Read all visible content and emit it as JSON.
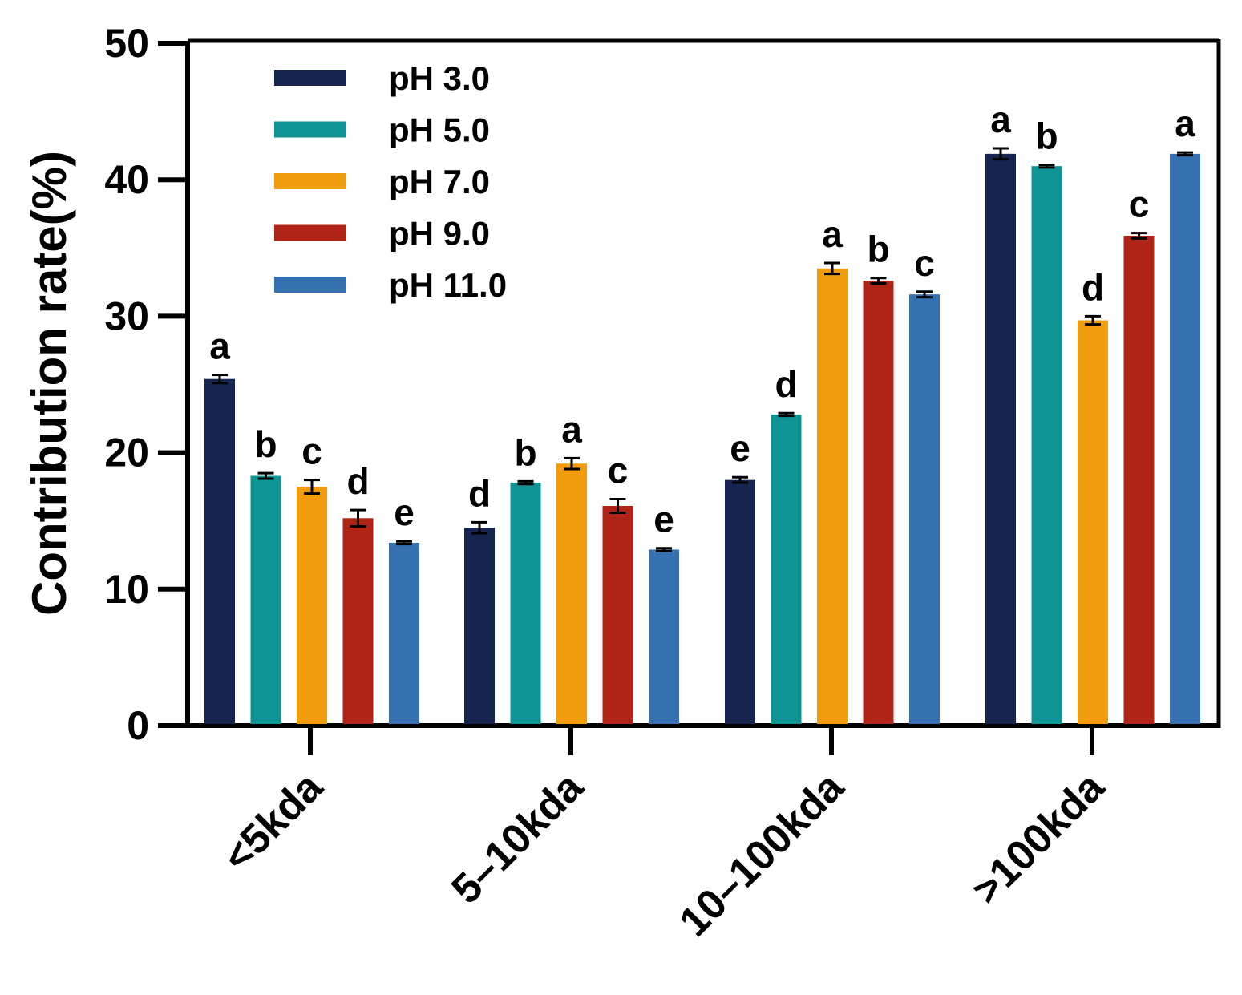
{
  "chart_data": {
    "type": "bar",
    "title": "",
    "xlabel": "",
    "ylabel": "Contribution rate(%)",
    "ylim": [
      0,
      50
    ],
    "yticks": [
      0,
      10,
      20,
      30,
      40,
      50
    ],
    "categories": [
      "<5kda",
      "5–10kda",
      "10–100kda",
      ">100kda"
    ],
    "series": [
      {
        "name": "pH 3.0",
        "color": "#15254f",
        "values": [
          25.4,
          14.5,
          18.0,
          41.9
        ],
        "errors": [
          0.3,
          0.4,
          0.2,
          0.4
        ],
        "letters": [
          "a",
          "d",
          "e",
          "a"
        ]
      },
      {
        "name": "pH 5.0",
        "color": "#0e9495",
        "values": [
          18.3,
          17.8,
          22.8,
          41.0
        ],
        "errors": [
          0.2,
          0.1,
          0.1,
          0.1
        ],
        "letters": [
          "b",
          "b",
          "d",
          "b"
        ]
      },
      {
        "name": "pH 7.0",
        "color": "#f09c0c",
        "values": [
          17.5,
          19.2,
          33.5,
          29.7
        ],
        "errors": [
          0.5,
          0.4,
          0.4,
          0.3
        ],
        "letters": [
          "c",
          "a",
          "a",
          "d"
        ]
      },
      {
        "name": "pH 9.0",
        "color": "#b02317",
        "values": [
          15.2,
          16.1,
          32.6,
          35.9
        ],
        "errors": [
          0.6,
          0.5,
          0.2,
          0.2
        ],
        "letters": [
          "d",
          "c",
          "b",
          "c"
        ]
      },
      {
        "name": "pH 11.0",
        "color": "#3571b1",
        "values": [
          13.4,
          12.9,
          31.6,
          41.9
        ],
        "errors": [
          0.1,
          0.1,
          0.2,
          0.1
        ],
        "letters": [
          "e",
          "e",
          "c",
          "a"
        ]
      }
    ],
    "legend_position": "top-left",
    "grid": false
  }
}
